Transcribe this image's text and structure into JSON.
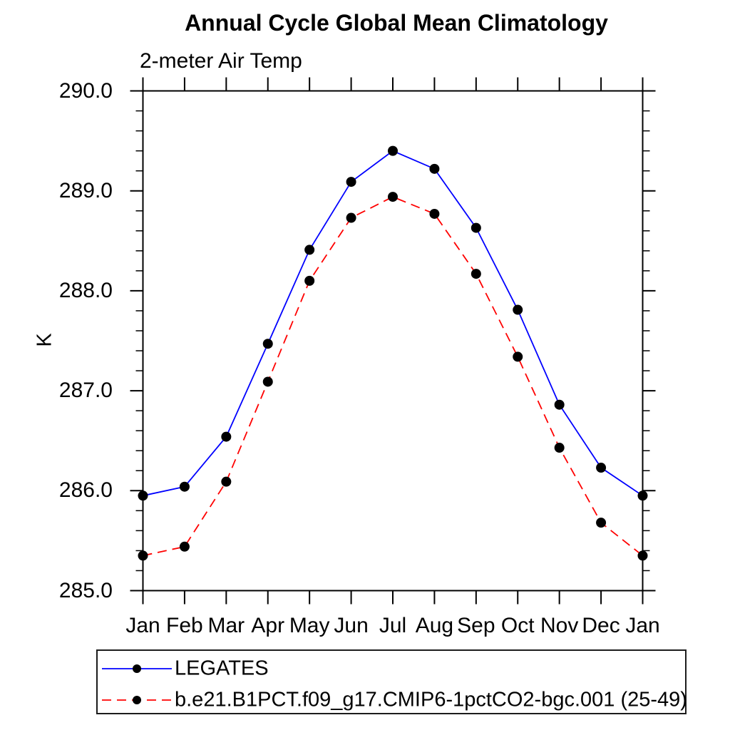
{
  "chart": {
    "title": "Annual Cycle Global Mean Climatology",
    "subtitle": "2-meter Air Temp",
    "y_axis_title": "K"
  },
  "chart_data": {
    "type": "line",
    "title": "Annual Cycle Global Mean Climatology",
    "subtitle": "2-meter Air Temp",
    "xlabel": "",
    "ylabel": "K",
    "categories": [
      "Jan",
      "Feb",
      "Mar",
      "Apr",
      "May",
      "Jun",
      "Jul",
      "Aug",
      "Sep",
      "Oct",
      "Nov",
      "Dec",
      "Jan"
    ],
    "y_tick_labels": [
      "285.0",
      "286.0",
      "287.0",
      "288.0",
      "289.0",
      "290.0"
    ],
    "ylim": [
      285.0,
      290.0
    ],
    "y_major_step": 1.0,
    "y_minor_step": 0.2,
    "grid": false,
    "legend_position": "bottom-left-boxed",
    "marker": "filled-circle",
    "marker_color": "#000000",
    "axis_color": "#000000",
    "series": [
      {
        "name": "LEGATES",
        "color": "#0000ff",
        "line_style": "solid",
        "values": [
          285.95,
          286.04,
          286.54,
          287.47,
          288.41,
          289.09,
          289.4,
          289.22,
          288.63,
          287.81,
          286.86,
          286.23,
          285.95
        ]
      },
      {
        "name": "b.e21.B1PCT.f09_g17.CMIP6-1pctCO2-bgc.001 (25-49)",
        "color": "#ff0000",
        "line_style": "dashed",
        "values": [
          285.35,
          285.44,
          286.09,
          287.09,
          288.1,
          288.73,
          288.94,
          288.77,
          288.17,
          287.34,
          286.43,
          285.68,
          285.35
        ]
      }
    ]
  }
}
